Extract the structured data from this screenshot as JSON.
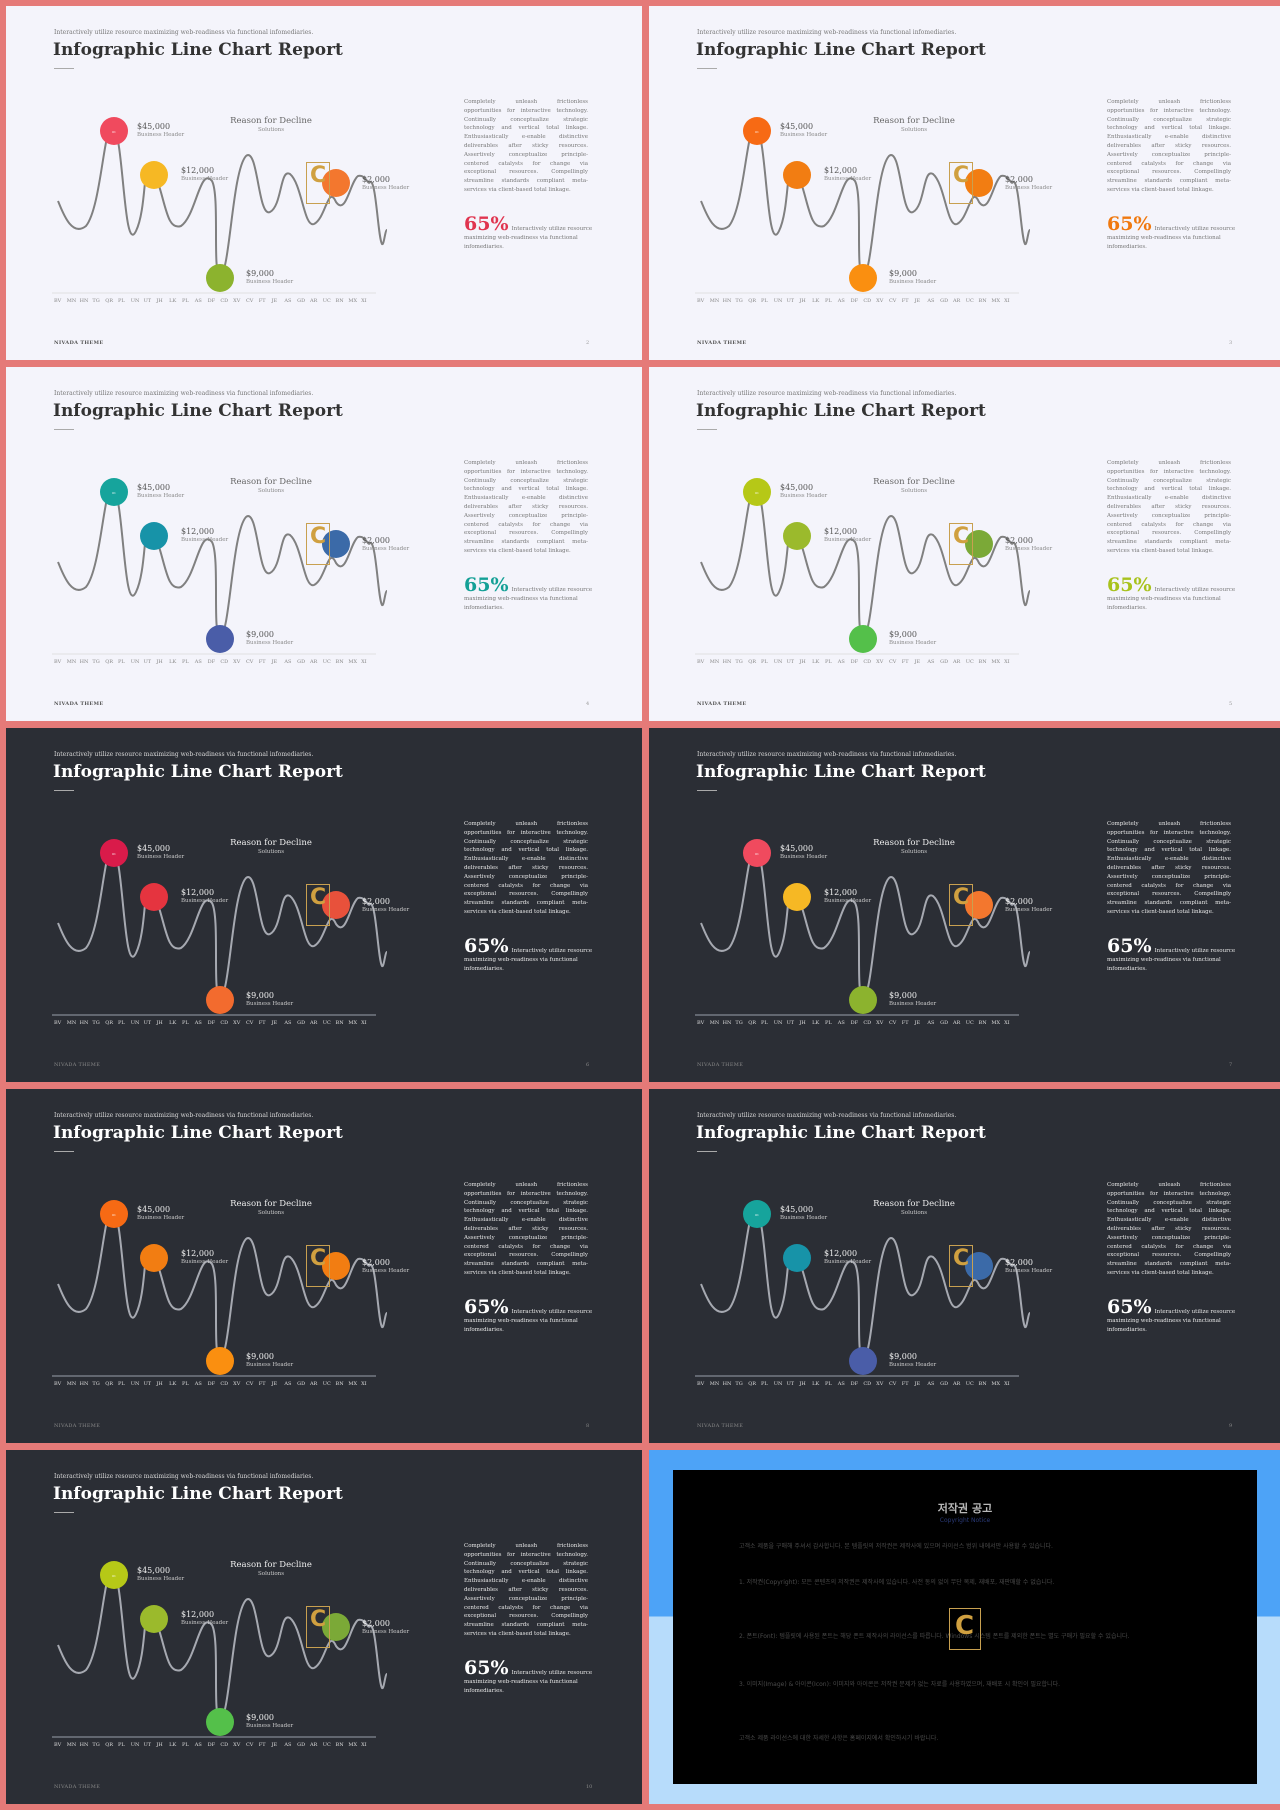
{
  "slide_template": {
    "subtitle": "Interactively utilize resource maximizing web-readiness via functional infomediaries.",
    "title": "Infographic Line Chart Report",
    "callouts": [
      {
        "value": "$45,000",
        "sub": "Business Header"
      },
      {
        "value": "$12,000",
        "sub": "Business Header"
      },
      {
        "value": "$9,000",
        "sub": "Business Header"
      },
      {
        "value": "$2,000",
        "sub": "Business Header"
      }
    ],
    "reason_title": "Reason for Decline",
    "reason_sub": "Solutions",
    "paragraph": "Completely unleash frictionless opportunities for interactive technology. Continually conceptualize strategic technology and vertical total linkage. Enthusiastically e-enable distinctive deliverables after sticky resources. Assertively conceptualize principle-centered catalysts for change via exceptional resources. Compellingly streamline standards compliant meta-services via client-based total linkage.",
    "percent": "65%",
    "percent_text": "Interactively utilize resource maximizing web-readiness via functional infomediaries.",
    "footer": "NIVADA THEME",
    "x_labels": [
      "BV",
      "MN",
      "HN",
      "TG",
      "QR",
      "PL",
      "UN",
      "UT",
      "JH",
      "LK",
      "PL",
      "AS",
      "DF",
      "CD",
      "XV",
      "CV",
      "FT",
      "JE",
      "AS",
      "GD",
      "AR",
      "UC",
      "BN",
      "MX",
      "XI"
    ]
  },
  "slides": [
    {
      "theme": "light",
      "page": "2",
      "colors": {
        "c45": "#f04a5e",
        "c12": "#f6b824",
        "c9": "#8cb32e",
        "c2": "#f3772e",
        "pct": "#e0344f"
      }
    },
    {
      "theme": "light",
      "page": "3",
      "colors": {
        "c45": "#f76a14",
        "c12": "#f27d12",
        "c9": "#fa8f10",
        "c2": "#f27d12",
        "pct": "#f0790f"
      }
    },
    {
      "theme": "light",
      "page": "4",
      "colors": {
        "c45": "#16a49c",
        "c12": "#1793a8",
        "c9": "#4a5da8",
        "c2": "#3b6aa8",
        "pct": "#14a096"
      }
    },
    {
      "theme": "light",
      "page": "5",
      "colors": {
        "c45": "#b6c817",
        "c12": "#9bba2c",
        "c9": "#54c04a",
        "c2": "#7ba937",
        "pct": "#a8c21d"
      }
    },
    {
      "theme": "dark",
      "page": "6",
      "colors": {
        "c45": "#d91b4a",
        "c12": "#e5343f",
        "c9": "#f36b2e",
        "c2": "#e8513b",
        "pct": "#ffffff"
      }
    },
    {
      "theme": "dark",
      "page": "7",
      "colors": {
        "c45": "#f04a5e",
        "c12": "#f6b824",
        "c9": "#8cb32e",
        "c2": "#f3772e",
        "pct": "#ffffff"
      }
    },
    {
      "theme": "dark",
      "page": "8",
      "colors": {
        "c45": "#f76a14",
        "c12": "#f27d12",
        "c9": "#fa8f10",
        "c2": "#f27d12",
        "pct": "#ffffff"
      }
    },
    {
      "theme": "dark",
      "page": "9",
      "colors": {
        "c45": "#16a49c",
        "c12": "#1793a8",
        "c9": "#4a5da8",
        "c2": "#3b6aa8",
        "pct": "#ffffff"
      }
    },
    {
      "theme": "dark",
      "page": "10",
      "colors": {
        "c45": "#b6c817",
        "c12": "#9bba2c",
        "c9": "#54c04a",
        "c2": "#7ba937",
        "pct": "#ffffff"
      }
    }
  ],
  "copyright": {
    "title": "저작권 공고",
    "subtitle": "Copyright Notice",
    "p1": "고객소 제품을 구매해 주셔서 감사합니다. 본 템플릿의 저작권은 제작사에 있으며 라이선스 범위 내에서만 사용할 수 있습니다.",
    "p2": "1. 저작권(Copyright): 모든 콘텐츠의 저작권은 제작사에 있습니다. 사전 동의 없이 무단 복제, 재배포, 재판매할 수 없습니다.",
    "p3": "2. 폰트(Font): 템플릿에 사용된 폰트는 해당 폰트 제작사의 라이선스를 따릅니다. Windows 시스템 폰트를 제외한 폰트는 별도 구매가 필요할 수 있습니다.",
    "p4": "3. 이미지(Image) & 아이콘(Icon): 이미지와 아이콘은 저작권 문제가 없는 자료를 사용하였으며, 재배포 시 확인이 필요합니다.",
    "p5": "고객소 제품 라이선스에 대한 자세한 사항은 홈페이지에서 확인하시기 바랍니다."
  }
}
